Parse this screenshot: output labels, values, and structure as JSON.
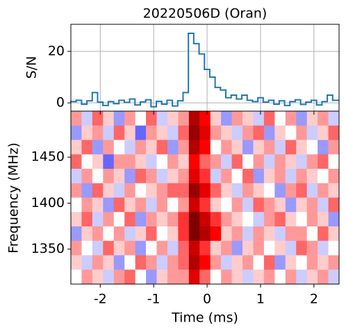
{
  "chart_data": [
    {
      "type": "step",
      "title": "20220506D (Oran)",
      "ylabel": "S/N",
      "color": "#1f77b4",
      "grid": true,
      "xlim": [
        -2.55,
        2.47
      ],
      "xticks": [
        -2,
        -1,
        0,
        1,
        2
      ],
      "ylim": [
        -3.2,
        30.5
      ],
      "yticks": [
        0,
        20
      ],
      "x": [
        -2.5,
        -2.4,
        -2.3,
        -2.2,
        -2.1,
        -2.0,
        -1.9,
        -1.8,
        -1.7,
        -1.6,
        -1.5,
        -1.4,
        -1.3,
        -1.2,
        -1.1,
        -1.0,
        -0.9,
        -0.8,
        -0.7,
        -0.6,
        -0.5,
        -0.4,
        -0.3,
        -0.2,
        -0.1,
        0.0,
        0.1,
        0.2,
        0.3,
        0.4,
        0.5,
        0.6,
        0.7,
        0.8,
        0.9,
        1.0,
        1.1,
        1.2,
        1.3,
        1.4,
        1.5,
        1.6,
        1.7,
        1.8,
        1.9,
        2.0,
        2.1,
        2.2,
        2.3,
        2.4
      ],
      "values": [
        0.5,
        1,
        -0.5,
        0.8,
        4,
        0.3,
        -1,
        0.5,
        -0.3,
        1.0,
        0.2,
        1.5,
        -0.8,
        0.4,
        1.2,
        -1.5,
        0.6,
        -0.5,
        1.0,
        -1.2,
        0.8,
        4,
        27,
        23,
        19,
        13,
        10,
        6,
        5,
        2,
        3,
        1.5,
        3,
        1,
        0.5,
        2,
        0.3,
        1,
        -0.5,
        0.8,
        -1,
        0.5,
        1.2,
        -0.6,
        0.3,
        1,
        -0.8,
        0.5,
        3,
        1
      ]
    },
    {
      "type": "heatmap",
      "xlabel": "Time (ms)",
      "ylabel": "Frequency (MHz)",
      "colormap": "seismic",
      "vlim": [
        -1,
        1
      ],
      "xlim": [
        -2.55,
        2.47
      ],
      "xticks": [
        -2,
        -1,
        0,
        1,
        2
      ],
      "ylim": [
        1312,
        1500
      ],
      "yticks": [
        1350,
        1400,
        1450
      ],
      "values": [
        [
          0.2,
          -0.1,
          0.3,
          0.1,
          -0.2,
          0.2,
          0.0,
          0.3,
          -0.1,
          0.1,
          0.2,
          0.8,
          0.5,
          0.1,
          -0.2,
          0.2,
          0.1,
          -0.1,
          0.3,
          0.0,
          0.2,
          -0.2,
          0.1,
          0.2,
          -0.1
        ],
        [
          -0.2,
          0.1,
          0.2,
          -0.1,
          0.3,
          0.1,
          -0.3,
          0.2,
          0.1,
          -0.1,
          0.3,
          0.9,
          0.6,
          0.2,
          0.1,
          -0.1,
          0.2,
          0.3,
          -0.2,
          0.1,
          0.0,
          0.2,
          -0.1,
          0.1,
          0.3
        ],
        [
          0.1,
          0.3,
          -0.2,
          0.2,
          0.0,
          -0.1,
          0.2,
          0.1,
          0.3,
          -0.2,
          0.2,
          0.8,
          0.5,
          0.0,
          0.2,
          0.1,
          -0.2,
          0.1,
          0.2,
          -0.1,
          0.3,
          0.1,
          0.0,
          -0.2,
          0.2
        ],
        [
          0.3,
          0.0,
          0.1,
          -0.3,
          0.2,
          0.2,
          0.1,
          -0.1,
          0.0,
          0.2,
          0.1,
          0.5,
          0.3,
          0.2,
          -0.1,
          0.3,
          0.0,
          0.2,
          -0.1,
          0.2,
          0.1,
          -0.1,
          0.2,
          0.3,
          0.0
        ],
        [
          -0.1,
          0.2,
          0.0,
          0.2,
          0.1,
          -0.2,
          0.3,
          0.2,
          -0.1,
          0.1,
          0.2,
          0.6,
          0.4,
          -0.1,
          0.2,
          0.0,
          0.3,
          -0.2,
          0.1,
          0.2,
          -0.1,
          0.2,
          0.1,
          0.0,
          0.2
        ],
        [
          0.2,
          -0.2,
          0.3,
          0.1,
          -0.1,
          0.2,
          0.0,
          0.1,
          0.2,
          0.3,
          0.3,
          0.9,
          0.6,
          0.3,
          0.1,
          -0.1,
          0.2,
          0.1,
          0.0,
          -0.2,
          0.2,
          0.3,
          -0.1,
          0.2,
          0.1
        ],
        [
          0.0,
          0.2,
          0.1,
          -0.2,
          0.3,
          0.1,
          0.2,
          -0.1,
          0.2,
          0.0,
          0.2,
          0.7,
          0.4,
          0.1,
          0.0,
          0.2,
          -0.1,
          0.3,
          0.2,
          0.1,
          -0.2,
          0.1,
          0.2,
          -0.1,
          0.3
        ],
        [
          0.1,
          0.3,
          -0.1,
          0.2,
          0.0,
          0.3,
          -0.2,
          0.2,
          0.1,
          0.2,
          0.4,
          1.0,
          0.7,
          0.4,
          0.2,
          0.1,
          0.0,
          -0.1,
          0.2,
          0.3,
          0.1,
          0.0,
          0.2,
          0.1,
          -0.2
        ],
        [
          -0.2,
          0.1,
          0.2,
          0.0,
          0.2,
          -0.1,
          0.1,
          0.3,
          0.0,
          0.1,
          0.4,
          1.0,
          0.8,
          0.5,
          0.1,
          0.2,
          -0.1,
          0.2,
          0.1,
          -0.1,
          0.2,
          0.2,
          0.0,
          0.3,
          0.1
        ],
        [
          0.2,
          0.0,
          -0.1,
          0.3,
          0.1,
          0.2,
          -0.2,
          0.0,
          0.2,
          -0.1,
          0.3,
          0.7,
          0.4,
          0.1,
          0.2,
          -0.2,
          0.1,
          0.2,
          0.0,
          0.1,
          -0.1,
          0.3,
          0.2,
          -0.1,
          0.0
        ],
        [
          0.1,
          -0.1,
          0.2,
          0.1,
          -0.2,
          0.0,
          0.3,
          0.2,
          -0.1,
          0.2,
          0.3,
          0.8,
          0.5,
          0.2,
          -0.1,
          0.1,
          0.2,
          0.0,
          0.3,
          -0.2,
          0.1,
          0.0,
          0.2,
          0.1,
          0.2
        ],
        [
          0.0,
          0.2,
          0.1,
          -0.1,
          0.2,
          0.3,
          0.0,
          -0.2,
          0.1,
          0.2,
          0.2,
          0.6,
          0.3,
          0.0,
          0.2,
          0.1,
          -0.1,
          0.1,
          0.2,
          0.0,
          0.2,
          -0.1,
          0.1,
          0.2,
          -0.1
        ]
      ]
    }
  ]
}
